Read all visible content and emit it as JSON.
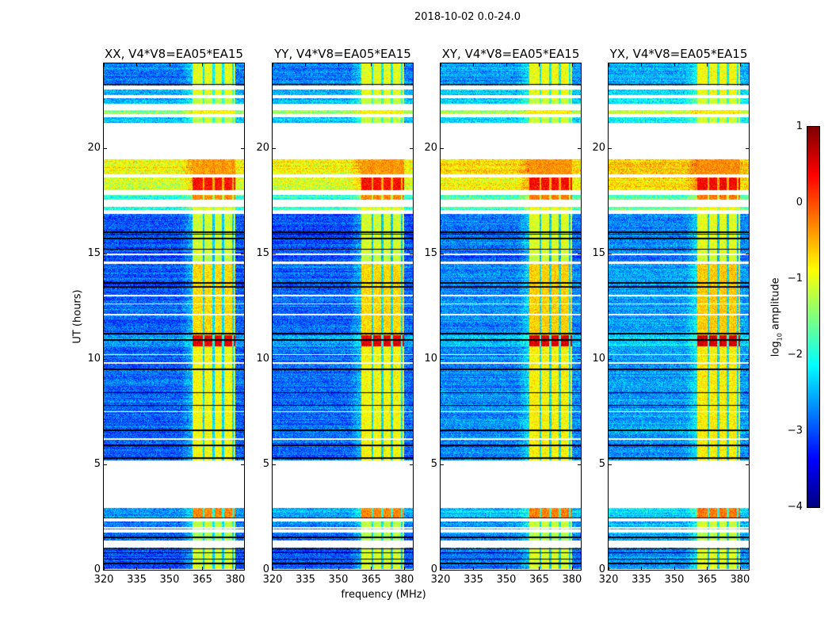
{
  "chart_data": {
    "type": "heatmap",
    "title": "2018-10-02 0.0-24.0",
    "xlabel": "frequency (MHz)",
    "ylabel": "UT (hours)",
    "xlim": [
      320,
      384
    ],
    "ylim": [
      0,
      24
    ],
    "xticks": [
      320,
      335,
      350,
      365,
      380
    ],
    "yticks": [
      0,
      5,
      10,
      15,
      20
    ],
    "panels": [
      {
        "title": "XX, V4*V8=EA05*EA15",
        "level_offset": 0.0
      },
      {
        "title": "YY, V4*V8=EA05*EA15",
        "level_offset": 0.05
      },
      {
        "title": "XY, V4*V8=EA05*EA15",
        "level_offset": 0.2
      },
      {
        "title": "YX, V4*V8=EA05*EA15",
        "level_offset": 0.3
      }
    ],
    "colorbar": {
      "label_prefix": "log",
      "label_sub": "10",
      "label_suffix": " amplitude",
      "range": [
        -4,
        1
      ],
      "ticks": [
        -4,
        -3,
        -2,
        -1,
        0,
        1
      ],
      "colormap": "jet"
    },
    "rfi_band_mhz": [
      360.5,
      380
    ],
    "rfi_channel_gaps_mhz": [
      365.5,
      370,
      374.5,
      379
    ],
    "time_segments": [
      {
        "t0": 22.95,
        "t1": 24.0,
        "base": -2.8,
        "rfi": -1.0
      },
      {
        "t0": 22.5,
        "t1": 22.75,
        "base": -2.6,
        "rfi": -1.0
      },
      {
        "t0": 22.1,
        "t1": 22.35,
        "base": -2.5,
        "rfi": -1.2
      },
      {
        "t0": 21.6,
        "t1": 21.8,
        "base": -1.4,
        "rfi": -0.9
      },
      {
        "t0": 21.2,
        "t1": 21.45,
        "base": -2.5,
        "rfi": -1.2
      },
      {
        "t0": 18.75,
        "t1": 19.45,
        "base": -0.9,
        "rfi": -0.4
      },
      {
        "t0": 18.0,
        "t1": 18.6,
        "base": -1.1,
        "rfi": 0.3
      },
      {
        "t0": 17.55,
        "t1": 17.75,
        "base": -1.9,
        "rfi": -0.3
      },
      {
        "t0": 17.05,
        "t1": 17.2,
        "base": -2.0,
        "rfi": -1.0
      },
      {
        "t0": 15.0,
        "t1": 16.85,
        "base": -3.0,
        "rfi": -1.1
      },
      {
        "t0": 14.6,
        "t1": 14.9,
        "base": -3.1,
        "rfi": -1.2
      },
      {
        "t0": 11.1,
        "t1": 14.5,
        "base": -2.9,
        "rfi": -0.7
      },
      {
        "t0": 10.6,
        "t1": 11.1,
        "base": -2.6,
        "rfi": 0.5
      },
      {
        "t0": 5.2,
        "t1": 10.6,
        "base": -2.9,
        "rfi": -0.9
      },
      {
        "t0": 2.45,
        "t1": 2.95,
        "base": -2.6,
        "rfi": -0.3
      },
      {
        "t0": 1.9,
        "t1": 2.3,
        "base": -2.8,
        "rfi": -1.2
      },
      {
        "t0": 1.4,
        "t1": 1.75,
        "base": -2.9,
        "rfi": -1.3
      },
      {
        "t0": 0.05,
        "t1": 1.05,
        "base": -3.0,
        "rfi": -1.1
      }
    ],
    "flagged_rows_hours": [
      23.0,
      16.0,
      15.9,
      15.7,
      15.2,
      14.95,
      13.6,
      13.4,
      11.2,
      10.9,
      9.5,
      8.4,
      7.8,
      6.6,
      5.9,
      5.3,
      2.45,
      1.55,
      1.0,
      0.8,
      0.5,
      0.3
    ],
    "blank_rows_hours": [
      13.0,
      12.6,
      12.1,
      10.2,
      9.8,
      7.5,
      6.2,
      2.95,
      2.0
    ]
  }
}
